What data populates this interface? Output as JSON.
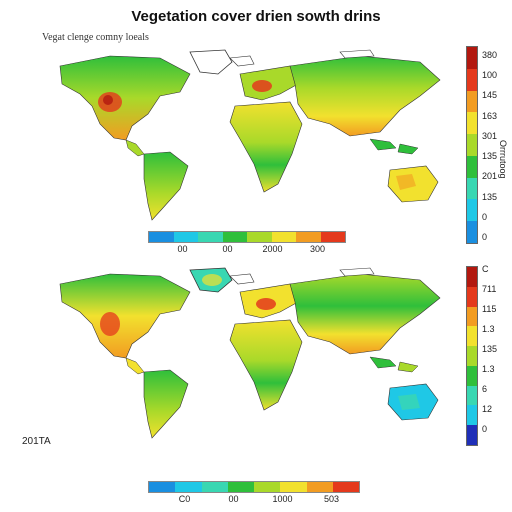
{
  "title": "Vegetation cover drien sowth drins",
  "subtitle": "Vegat clenge comny loeals",
  "corner_label": "201TA",
  "colors": {
    "ocean": "#ffffff",
    "deep_blue": "#1f2fb8",
    "blue": "#1a8fe0",
    "cyan": "#1fc8e6",
    "teal": "#39d7b2",
    "green": "#2fbf3b",
    "yellow_green": "#a9d92a",
    "yellow": "#f2e12e",
    "orange": "#f29c22",
    "red": "#e4391c",
    "dark_red": "#b2180f"
  },
  "top_map": {
    "hbar_labels": [
      "00",
      "00",
      "2000",
      "300"
    ],
    "vbar_labels": [
      "380",
      "100",
      "145",
      "163",
      "301",
      "135",
      "201",
      "135",
      "0",
      "0"
    ],
    "vaxis_label": "Orrrutoog"
  },
  "bottom_map": {
    "hbar_labels": [
      "C0",
      "00",
      "1000",
      "503"
    ],
    "vbar_labels": [
      "C",
      "711",
      "115",
      "1.3",
      "135",
      "1.3",
      "6",
      "12",
      "0"
    ]
  }
}
